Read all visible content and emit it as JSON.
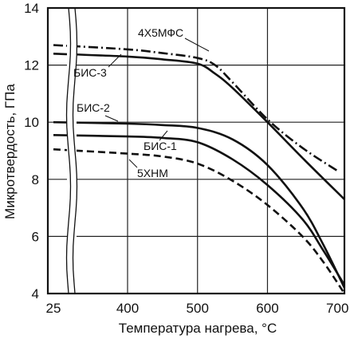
{
  "chart_data": {
    "type": "line",
    "xlabel": "Температура нагрева, °С",
    "ylabel": "Микротвердость, ГПа",
    "xticks": [
      "25",
      "400",
      "500",
      "600",
      "700"
    ],
    "yticks": [
      "4",
      "6",
      "8",
      "10",
      "12",
      "14"
    ],
    "xlim": [
      300,
      710
    ],
    "ylim": [
      4,
      14
    ],
    "x_break_between": [
      "25",
      "400"
    ],
    "grid": true,
    "series": [
      {
        "name": "4Х5МФС",
        "style": "dash-dot",
        "x": [
          25,
          400,
          450,
          500,
          525,
          550,
          600,
          650,
          700
        ],
        "y": [
          12.7,
          12.55,
          12.42,
          12.25,
          12.0,
          11.4,
          10.1,
          9.1,
          8.3
        ]
      },
      {
        "name": "БИС-3",
        "style": "solid",
        "x": [
          25,
          400,
          450,
          500,
          525,
          550,
          600,
          650,
          710
        ],
        "y": [
          12.4,
          12.3,
          12.2,
          12.05,
          11.7,
          11.2,
          10.0,
          8.75,
          7.3
        ]
      },
      {
        "name": "БИС-2",
        "style": "solid",
        "x": [
          25,
          400,
          450,
          500,
          550,
          600,
          650,
          680,
          710
        ],
        "y": [
          10.0,
          9.95,
          9.9,
          9.8,
          9.4,
          8.5,
          7.0,
          5.7,
          4.2
        ]
      },
      {
        "name": "БИС-1",
        "style": "solid",
        "x": [
          25,
          400,
          450,
          500,
          550,
          600,
          650,
          680,
          710
        ],
        "y": [
          9.55,
          9.5,
          9.45,
          9.3,
          8.7,
          7.8,
          6.6,
          5.5,
          4.3
        ]
      },
      {
        "name": "5ХНМ",
        "style": "dashed",
        "x": [
          25,
          400,
          450,
          500,
          550,
          600,
          650,
          680,
          710
        ],
        "y": [
          9.05,
          8.9,
          8.8,
          8.55,
          7.95,
          7.1,
          6.0,
          5.1,
          4.0
        ]
      }
    ],
    "colors": {
      "line": "#111111",
      "background": "#ffffff"
    }
  }
}
